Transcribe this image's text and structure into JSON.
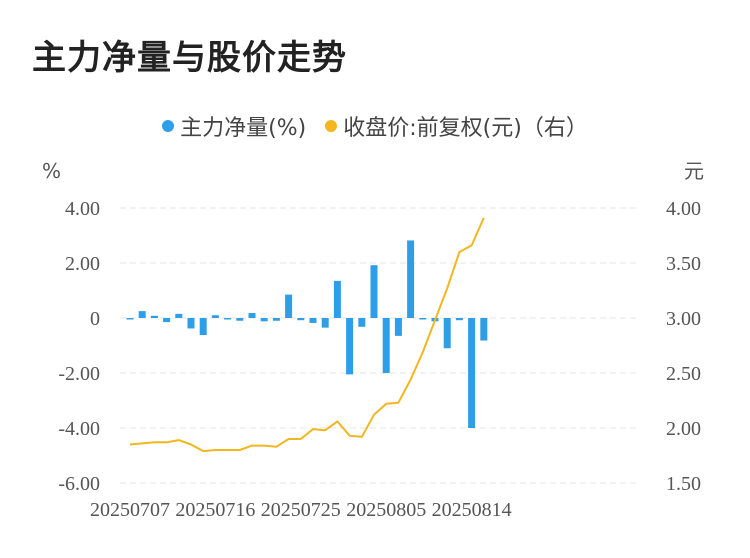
{
  "title": "主力净量与股价走势",
  "colors": {
    "bar": "#2f9ee8",
    "line": "#f3b61f",
    "grid": "#e6e6e6"
  },
  "legend": [
    {
      "label": "主力净量(%)",
      "color": "#2f9ee8"
    },
    {
      "label": "收盘价:前复权(元)（右）",
      "color": "#f3b61f"
    }
  ],
  "chart_data": {
    "type": "bar+line",
    "left_axis": {
      "unit": "%",
      "ticks": [
        "4.00",
        "2.00",
        "0",
        "-2.00",
        "-4.00",
        "-6.00"
      ],
      "ylim": [
        -6,
        4
      ]
    },
    "right_axis": {
      "unit": "元",
      "ticks": [
        "4.00",
        "3.50",
        "3.00",
        "2.50",
        "2.00",
        "1.50"
      ],
      "ylim": [
        1.5,
        4
      ]
    },
    "x_tick_labels": [
      {
        "index": 0,
        "label": "20250707"
      },
      {
        "index": 7,
        "label": "20250716"
      },
      {
        "index": 14,
        "label": "20250725"
      },
      {
        "index": 21,
        "label": "20250805"
      },
      {
        "index": 28,
        "label": "20250814"
      }
    ],
    "series": [
      {
        "name": "主力净量(%)",
        "kind": "bar",
        "axis": "left",
        "values": [
          -0.05,
          0.25,
          0.08,
          -0.15,
          0.15,
          -0.38,
          -0.62,
          0.1,
          -0.05,
          -0.1,
          0.18,
          -0.12,
          -0.1,
          0.85,
          -0.08,
          -0.18,
          -0.35,
          1.35,
          -2.05,
          -0.32,
          1.92,
          -2.0,
          -0.65,
          2.82,
          -0.03,
          -0.12,
          -1.1,
          -0.08,
          -4.0,
          -0.82
        ]
      },
      {
        "name": "收盘价:前复权(元)（右）",
        "kind": "line",
        "axis": "right",
        "values": [
          1.85,
          1.86,
          1.87,
          1.87,
          1.89,
          1.85,
          1.79,
          1.8,
          1.8,
          1.8,
          1.84,
          1.84,
          1.83,
          1.9,
          1.9,
          1.99,
          1.98,
          2.06,
          1.93,
          1.92,
          2.12,
          2.22,
          2.23,
          2.44,
          2.69,
          2.98,
          3.27,
          3.6,
          3.66,
          3.91
        ]
      }
    ]
  }
}
